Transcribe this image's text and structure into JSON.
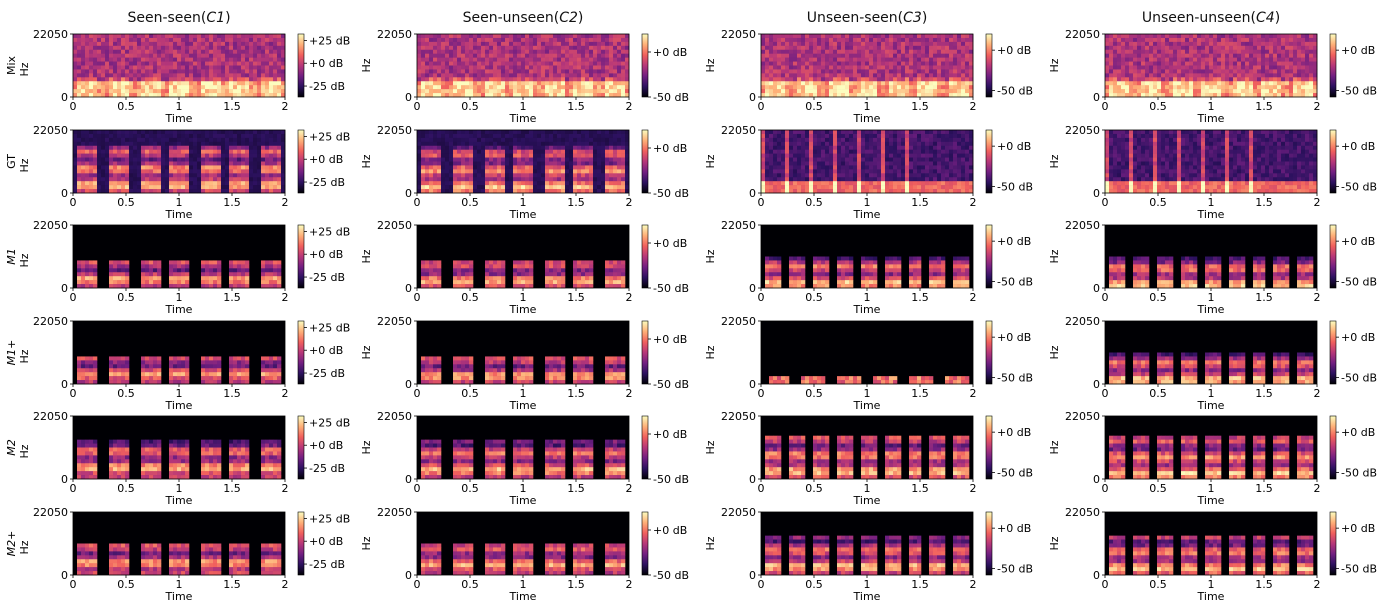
{
  "columns": [
    {
      "title_prefix": "Seen-seen(",
      "title_code": "C1",
      "title_suffix": ")",
      "cbar_ticks": [
        "+25 dB",
        "+0 dB",
        "-25 dB"
      ],
      "cbar_values": [
        25,
        0,
        -25
      ],
      "cbar_range": [
        -37,
        32
      ]
    },
    {
      "title_prefix": "Seen-unseen(",
      "title_code": "C2",
      "title_suffix": ")",
      "cbar_ticks": [
        "+0 dB",
        "-50 dB"
      ],
      "cbar_values": [
        0,
        -50
      ],
      "cbar_range": [
        -50,
        20
      ]
    },
    {
      "title_prefix": "Unseen-seen(",
      "title_code": "C3",
      "title_suffix": ")",
      "cbar_ticks": [
        "+0 dB",
        "-50 dB"
      ],
      "cbar_values": [
        0,
        -50
      ],
      "cbar_range": [
        -58,
        20
      ]
    },
    {
      "title_prefix": "Unseen-unseen(",
      "title_code": "C4",
      "title_suffix": ")",
      "cbar_ticks": [
        "+0 dB",
        "-50 dB"
      ],
      "cbar_values": [
        0,
        -50
      ],
      "cbar_range": [
        -58,
        20
      ]
    }
  ],
  "rows": [
    {
      "label": "Mix",
      "italic": false
    },
    {
      "label": "GT",
      "italic": false
    },
    {
      "label": "M1",
      "italic": true
    },
    {
      "label": "M1+",
      "italic": true
    },
    {
      "label": "M2",
      "italic": true
    },
    {
      "label": "M2+",
      "italic": true
    }
  ],
  "chart_data": {
    "type": "heatmap",
    "description_kind": "spectrogram grid",
    "xlabel": "Time",
    "ylabel": "Hz",
    "x_ticks": [
      "0",
      "0.5",
      "1",
      "1.5",
      "2"
    ],
    "x_tick_values": [
      0,
      0.5,
      1,
      1.5,
      2
    ],
    "xlim": [
      0,
      2
    ],
    "y_ticks": [
      "0",
      "22050"
    ],
    "y_tick_values": [
      0,
      22050
    ],
    "ylim": [
      0,
      22050
    ],
    "colormap": [
      "#000004",
      "#2c115f",
      "#721f81",
      "#b73779",
      "#f1605d",
      "#feb078",
      "#fcfdbf"
    ]
  }
}
